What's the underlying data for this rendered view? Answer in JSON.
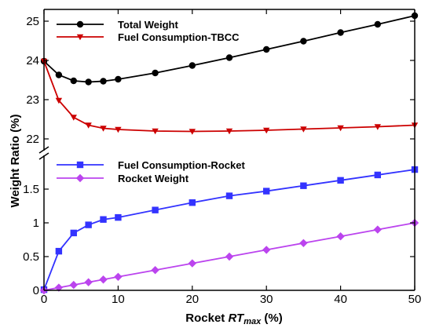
{
  "chart_data": {
    "type": "line",
    "xlabel_prefix": "Rocket ",
    "xlabel_italic": "RT",
    "xlabel_sub": "max",
    "xlabel_suffix": " (%)",
    "ylabel": "Weight Ratio (%)",
    "x_ticks": [
      "0",
      "10",
      "20",
      "30",
      "40",
      "50"
    ],
    "xlim": [
      0,
      50
    ],
    "broken_axis": true,
    "panels": [
      {
        "name": "upper",
        "ylim": [
          21.7,
          25.3
        ],
        "y_ticks": [
          "22",
          "23",
          "24",
          "25"
        ],
        "series": [
          {
            "name": "Total Weight",
            "color": "#000000",
            "marker": "circle",
            "x": [
              0,
              2,
              4,
              6,
              8,
              10,
              15,
              20,
              25,
              30,
              35,
              40,
              45,
              50
            ],
            "values": [
              23.98,
              23.63,
              23.48,
              23.45,
              23.47,
              23.52,
              23.68,
              23.87,
              24.07,
              24.28,
              24.49,
              24.71,
              24.92,
              25.14
            ]
          },
          {
            "name": "Fuel Consumption-TBCC",
            "color": "#cc0000",
            "marker": "triangle-down",
            "x": [
              0,
              2,
              4,
              6,
              8,
              10,
              15,
              20,
              25,
              30,
              35,
              40,
              45,
              50
            ],
            "values": [
              23.98,
              22.98,
              22.55,
              22.35,
              22.27,
              22.24,
              22.2,
              22.19,
              22.2,
              22.22,
              22.25,
              22.28,
              22.31,
              22.35
            ]
          }
        ]
      },
      {
        "name": "lower",
        "ylim": [
          0,
          2.0
        ],
        "y_ticks": [
          "0",
          "0.5",
          "1",
          "1.5"
        ],
        "series": [
          {
            "name": "Fuel Consumption-Rocket",
            "color": "#3333ff",
            "marker": "square",
            "x": [
              0,
              2,
              4,
              6,
              8,
              10,
              15,
              20,
              25,
              30,
              35,
              40,
              45,
              50
            ],
            "values": [
              0.01,
              0.58,
              0.85,
              0.97,
              1.05,
              1.08,
              1.19,
              1.3,
              1.4,
              1.47,
              1.55,
              1.63,
              1.71,
              1.79
            ]
          },
          {
            "name": "Rocket Weight",
            "color": "#bb44ee",
            "marker": "diamond",
            "x": [
              0,
              2,
              4,
              6,
              8,
              10,
              15,
              20,
              25,
              30,
              35,
              40,
              45,
              50
            ],
            "values": [
              0,
              0.04,
              0.08,
              0.12,
              0.16,
              0.2,
              0.3,
              0.4,
              0.5,
              0.6,
              0.7,
              0.8,
              0.9,
              1.0
            ]
          }
        ]
      }
    ]
  }
}
